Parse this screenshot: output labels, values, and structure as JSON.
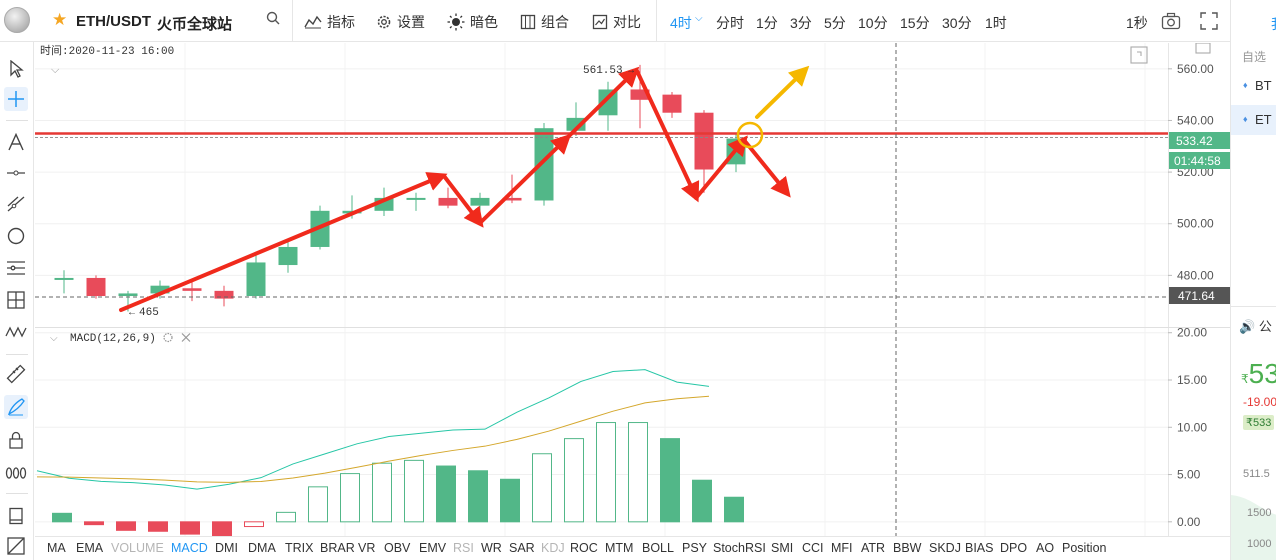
{
  "topbar": {
    "symbol": "ETH/USDT",
    "exchange": "火币全球站",
    "indicators_label": "指标",
    "settings_label": "设置",
    "dark_label": "暗色",
    "compose_label": "组合",
    "compare_label": "对比",
    "timeframes": [
      "4时",
      "分时",
      "1分",
      "3分",
      "5分",
      "10分",
      "15分",
      "30分",
      "1时"
    ],
    "active_timeframe": "4时",
    "refresh": "1秒"
  },
  "chart": {
    "time_label": "时间:2020-11-23 16:00",
    "high_label": "561.53",
    "low_label": "465",
    "current_price": "533.42",
    "countdown": "01:44:58",
    "crosshair_price": "471.64",
    "price_ticks": [
      "560.00",
      "540.00",
      "520.00",
      "500.00",
      "480.00"
    ],
    "macd_label": "MACD(12,26,9)",
    "macd_ticks": [
      "20.00",
      "15.00",
      "10.00",
      "5.00",
      "0.00"
    ],
    "colors": {
      "up": "#52b788",
      "down": "#e84b5a",
      "price_line": "#e53935",
      "arrow": "#f02a1c",
      "yellow": "#f5b800",
      "dif": "#26c6a6",
      "dea": "#d4a72c"
    }
  },
  "chart_data": {
    "type": "candlestick",
    "y_range": [
      460,
      570
    ],
    "candles": [
      {
        "o": 479,
        "h": 482,
        "l": 473,
        "c": 479
      },
      {
        "o": 479,
        "h": 480,
        "l": 471,
        "c": 472
      },
      {
        "o": 472,
        "h": 474,
        "l": 466,
        "c": 473
      },
      {
        "o": 473,
        "h": 478,
        "l": 471,
        "c": 476
      },
      {
        "o": 475,
        "h": 478,
        "l": 470,
        "c": 474
      },
      {
        "o": 474,
        "h": 476,
        "l": 468,
        "c": 471
      },
      {
        "o": 472,
        "h": 488,
        "l": 471,
        "c": 485
      },
      {
        "o": 484,
        "h": 494,
        "l": 481,
        "c": 491
      },
      {
        "o": 491,
        "h": 507,
        "l": 490,
        "c": 505
      },
      {
        "o": 504,
        "h": 511,
        "l": 502,
        "c": 505
      },
      {
        "o": 505,
        "h": 514,
        "l": 503,
        "c": 510
      },
      {
        "o": 510,
        "h": 512,
        "l": 505,
        "c": 510
      },
      {
        "o": 510,
        "h": 514,
        "l": 506,
        "c": 507
      },
      {
        "o": 507,
        "h": 512,
        "l": 505,
        "c": 510
      },
      {
        "o": 510,
        "h": 519,
        "l": 508,
        "c": 509
      },
      {
        "o": 509,
        "h": 539,
        "l": 507,
        "c": 537
      },
      {
        "o": 536,
        "h": 547,
        "l": 534,
        "c": 541
      },
      {
        "o": 542,
        "h": 555,
        "l": 536,
        "c": 552
      },
      {
        "o": 552,
        "h": 561.53,
        "l": 537,
        "c": 548
      },
      {
        "o": 550,
        "h": 551,
        "l": 541,
        "c": 543
      },
      {
        "o": 543,
        "h": 544,
        "l": 512,
        "c": 521
      },
      {
        "o": 523,
        "h": 535,
        "l": 520,
        "c": 533
      }
    ],
    "macd": {
      "range": [
        -1.5,
        20.5
      ],
      "histogram": [
        0.9,
        -0.3,
        -0.9,
        -1.0,
        -1.3,
        -1.9,
        -0.5,
        1.0,
        3.7,
        5.1,
        6.2,
        6.5,
        5.9,
        5.4,
        4.5,
        7.2,
        8.8,
        10.5,
        10.5,
        8.8,
        4.4,
        2.6
      ],
      "dif_start": 5.4,
      "dea_start": 4.6
    },
    "crosshair": {
      "candle": 26,
      "price": 471.64
    }
  },
  "bottombar": {
    "indicators": [
      "MA",
      "EMA",
      "VOLUME",
      "MACD",
      "DMI",
      "DMA",
      "TRIX",
      "BRAR",
      "VR",
      "OBV",
      "EMV",
      "RSI",
      "WR",
      "SAR",
      "KDJ",
      "ROC",
      "MTM",
      "BOLL",
      "PSY",
      "StochRSI",
      "SMI",
      "CCI",
      "MFI",
      "ATR",
      "BBW",
      "SKDJ",
      "BIAS",
      "DPO",
      "AO",
      "Position"
    ],
    "active": "MACD",
    "dim": [
      "VOLUME",
      "RSI",
      "KDJ"
    ]
  },
  "rightpanel": {
    "top_label": "我",
    "fav_label": "自选",
    "rows": [
      "BT",
      "ET"
    ],
    "announce": "公",
    "price": "53",
    "price_prefix": "₹",
    "change": "-19.00",
    "badge": "₹533",
    "mini_labels": [
      "511.5",
      "1500",
      "1000"
    ]
  }
}
